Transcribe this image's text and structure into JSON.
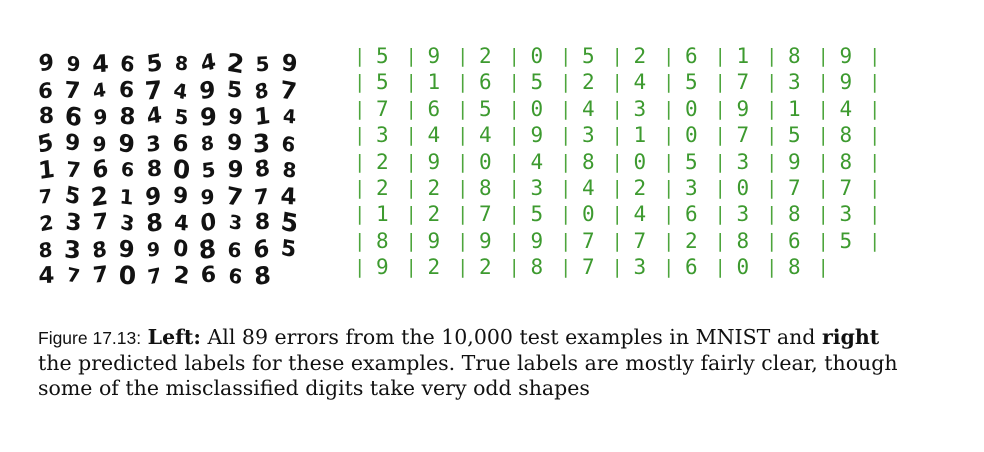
{
  "figure": {
    "image_description_rows": [
      [
        "9",
        "9",
        "4",
        "6",
        "5",
        "8",
        "4",
        "2",
        "5",
        "9"
      ],
      [
        "6",
        "7",
        "4",
        "6",
        "7",
        "4",
        "9",
        "5",
        "8",
        "7"
      ],
      [
        "8",
        "6",
        "9",
        "8",
        "4",
        "5",
        "9",
        "9",
        "1",
        "4"
      ],
      [
        "5",
        "9",
        "9",
        "9",
        "3",
        "6",
        "8",
        "9",
        "3",
        "6"
      ],
      [
        "1",
        "7",
        "6",
        "6",
        "8",
        "0",
        "5",
        "9",
        "8",
        "8"
      ],
      [
        "7",
        "5",
        "2",
        "1",
        "9",
        "9",
        "9",
        "7",
        "7",
        "4"
      ],
      [
        "2",
        "3",
        "7",
        "3",
        "8",
        "4",
        "0",
        "3",
        "8",
        "5"
      ],
      [
        "8",
        "3",
        "8",
        "9",
        "9",
        "0",
        "8",
        "6",
        "6",
        "5"
      ],
      [
        "4",
        "7",
        "7",
        "0",
        "7",
        "2",
        "6",
        "6",
        "8"
      ]
    ],
    "predicted_label_rows": [
      [
        "5",
        "9",
        "2",
        "0",
        "5",
        "2",
        "6",
        "1",
        "8",
        "9"
      ],
      [
        "5",
        "1",
        "6",
        "5",
        "2",
        "4",
        "5",
        "7",
        "3",
        "9"
      ],
      [
        "7",
        "6",
        "5",
        "0",
        "4",
        "3",
        "0",
        "9",
        "1",
        "4"
      ],
      [
        "3",
        "4",
        "4",
        "9",
        "3",
        "1",
        "0",
        "7",
        "5",
        "8"
      ],
      [
        "2",
        "9",
        "0",
        "4",
        "8",
        "0",
        "5",
        "3",
        "9",
        "8"
      ],
      [
        "2",
        "2",
        "8",
        "3",
        "4",
        "2",
        "3",
        "0",
        "7",
        "7"
      ],
      [
        "1",
        "2",
        "7",
        "5",
        "0",
        "4",
        "6",
        "3",
        "8",
        "3"
      ],
      [
        "8",
        "9",
        "9",
        "9",
        "7",
        "7",
        "2",
        "8",
        "6",
        "5"
      ],
      [
        "9",
        "2",
        "2",
        "8",
        "7",
        "3",
        "6",
        "0",
        "8"
      ]
    ],
    "separator": "|",
    "label_color": "#3d9a2f"
  },
  "caption": {
    "figure_number": "Figure 17.13:",
    "left_heading": "Left:",
    "text_part1": "All 89 errors from the 10,000 test examples in MNIST and",
    "right_heading": "right",
    "text_part2": "the predicted labels for these examples. True labels are mostly fairly clear, though some of the misclassified digits take very odd shapes"
  }
}
